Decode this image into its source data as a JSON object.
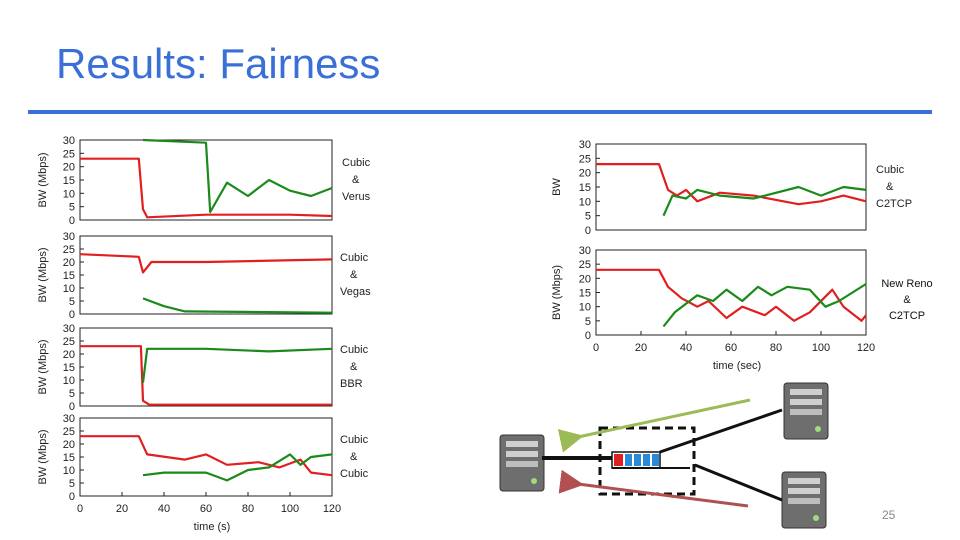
{
  "slide": {
    "title": "Results: Fairness",
    "page_number": "25"
  },
  "colors": {
    "red": "#e02020",
    "green": "#1a8a1a",
    "accent": "#3a6fd8"
  },
  "chart_data": [
    {
      "type": "line",
      "panel": "left-1",
      "ylabel": "BW (Mbps)",
      "ylim": [
        0,
        30
      ],
      "yticks": [
        "30",
        "25",
        "20",
        "15",
        "10",
        "5",
        "0"
      ],
      "legend": [
        "Cubic",
        "&",
        "Verus"
      ],
      "series": [
        {
          "color": "red",
          "points": [
            [
              0,
              23
            ],
            [
              28,
              23
            ],
            [
              30,
              4
            ],
            [
              32,
              1
            ],
            [
              60,
              2
            ],
            [
              80,
              2
            ],
            [
              100,
              2
            ],
            [
              120,
              1.5
            ]
          ]
        },
        {
          "color": "green",
          "points": [
            [
              30,
              30
            ],
            [
              60,
              29
            ],
            [
              62,
              3
            ],
            [
              70,
              14
            ],
            [
              80,
              9
            ],
            [
              90,
              15
            ],
            [
              100,
              11
            ],
            [
              110,
              9
            ],
            [
              120,
              12
            ]
          ]
        }
      ]
    },
    {
      "type": "line",
      "panel": "left-2",
      "ylabel": "BW (Mbps)",
      "ylim": [
        0,
        30
      ],
      "yticks": [
        "30",
        "25",
        "20",
        "15",
        "10",
        "5",
        "0"
      ],
      "legend": [
        "Cubic",
        "&",
        "Vegas"
      ],
      "series": [
        {
          "color": "red",
          "points": [
            [
              0,
              23
            ],
            [
              28,
              22
            ],
            [
              30,
              16
            ],
            [
              34,
              20
            ],
            [
              60,
              20
            ],
            [
              120,
              21
            ]
          ]
        },
        {
          "color": "green",
          "points": [
            [
              30,
              6
            ],
            [
              40,
              3
            ],
            [
              50,
              1
            ],
            [
              120,
              0.5
            ]
          ]
        }
      ]
    },
    {
      "type": "line",
      "panel": "left-3",
      "ylabel": "BW (Mbps)",
      "ylim": [
        0,
        30
      ],
      "yticks": [
        "30",
        "25",
        "20",
        "15",
        "10",
        "5",
        "0"
      ],
      "legend": [
        "Cubic",
        "&",
        "BBR"
      ],
      "series": [
        {
          "color": "red",
          "points": [
            [
              0,
              23
            ],
            [
              29,
              23
            ],
            [
              30,
              2
            ],
            [
              33,
              0.5
            ],
            [
              120,
              0.5
            ]
          ]
        },
        {
          "color": "green",
          "points": [
            [
              30,
              9
            ],
            [
              32,
              22
            ],
            [
              60,
              22
            ],
            [
              90,
              21
            ],
            [
              120,
              22
            ]
          ]
        }
      ]
    },
    {
      "type": "line",
      "panel": "left-4",
      "ylabel": "BW (Mbps)",
      "ylim": [
        0,
        30
      ],
      "yticks": [
        "30",
        "25",
        "20",
        "15",
        "10",
        "5",
        "0"
      ],
      "xticks": [
        "0",
        "20",
        "40",
        "60",
        "80",
        "100",
        "120"
      ],
      "xlabel": "time (s)",
      "legend": [
        "Cubic",
        "&",
        "Cubic"
      ],
      "series": [
        {
          "color": "red",
          "points": [
            [
              0,
              23
            ],
            [
              28,
              23
            ],
            [
              32,
              16
            ],
            [
              50,
              14
            ],
            [
              60,
              16
            ],
            [
              70,
              12
            ],
            [
              85,
              13
            ],
            [
              95,
              11
            ],
            [
              105,
              14
            ],
            [
              110,
              9
            ],
            [
              120,
              8
            ]
          ]
        },
        {
          "color": "green",
          "points": [
            [
              30,
              8
            ],
            [
              40,
              9
            ],
            [
              60,
              9
            ],
            [
              70,
              6
            ],
            [
              80,
              10
            ],
            [
              90,
              11
            ],
            [
              100,
              16
            ],
            [
              105,
              12
            ],
            [
              110,
              15
            ],
            [
              120,
              16
            ]
          ]
        }
      ]
    },
    {
      "type": "line",
      "panel": "right-1",
      "ylabel": "BW",
      "ylim": [
        0,
        30
      ],
      "yticks": [
        "30",
        "25",
        "20",
        "15",
        "10",
        "5",
        "0"
      ],
      "legend": [
        "Cubic",
        "&",
        "C2TCP"
      ],
      "series": [
        {
          "color": "red",
          "points": [
            [
              0,
              23
            ],
            [
              28,
              23
            ],
            [
              32,
              14
            ],
            [
              36,
              12
            ],
            [
              40,
              14
            ],
            [
              45,
              10
            ],
            [
              55,
              13
            ],
            [
              70,
              12
            ],
            [
              90,
              9
            ],
            [
              100,
              10
            ],
            [
              110,
              12
            ],
            [
              120,
              10
            ]
          ]
        },
        {
          "color": "green",
          "points": [
            [
              30,
              5
            ],
            [
              34,
              12
            ],
            [
              40,
              11
            ],
            [
              45,
              14
            ],
            [
              55,
              12
            ],
            [
              70,
              11
            ],
            [
              90,
              15
            ],
            [
              100,
              12
            ],
            [
              110,
              15
            ],
            [
              120,
              14
            ]
          ]
        }
      ]
    },
    {
      "type": "line",
      "panel": "right-2",
      "ylabel": "BW (Mbps)",
      "ylim": [
        0,
        30
      ],
      "yticks": [
        "30",
        "25",
        "20",
        "15",
        "10",
        "5",
        "0"
      ],
      "xticks": [
        "0",
        "20",
        "40",
        "60",
        "80",
        "100",
        "120"
      ],
      "xlabel": "time (sec)",
      "legend": [
        "New Reno",
        "&",
        "C2TCP"
      ],
      "series": [
        {
          "color": "red",
          "points": [
            [
              0,
              23
            ],
            [
              28,
              23
            ],
            [
              32,
              17
            ],
            [
              38,
              13
            ],
            [
              45,
              10
            ],
            [
              50,
              12
            ],
            [
              58,
              6
            ],
            [
              65,
              10
            ],
            [
              75,
              7
            ],
            [
              80,
              10
            ],
            [
              88,
              5
            ],
            [
              95,
              8
            ],
            [
              105,
              16
            ],
            [
              110,
              10
            ],
            [
              118,
              5
            ],
            [
              120,
              7
            ]
          ]
        },
        {
          "color": "green",
          "points": [
            [
              30,
              3
            ],
            [
              35,
              8
            ],
            [
              40,
              11
            ],
            [
              45,
              14
            ],
            [
              52,
              12
            ],
            [
              58,
              16
            ],
            [
              65,
              12
            ],
            [
              72,
              17
            ],
            [
              78,
              14
            ],
            [
              85,
              17
            ],
            [
              95,
              16
            ],
            [
              102,
              10
            ],
            [
              108,
              12
            ],
            [
              114,
              15
            ],
            [
              120,
              18
            ]
          ]
        }
      ]
    }
  ]
}
